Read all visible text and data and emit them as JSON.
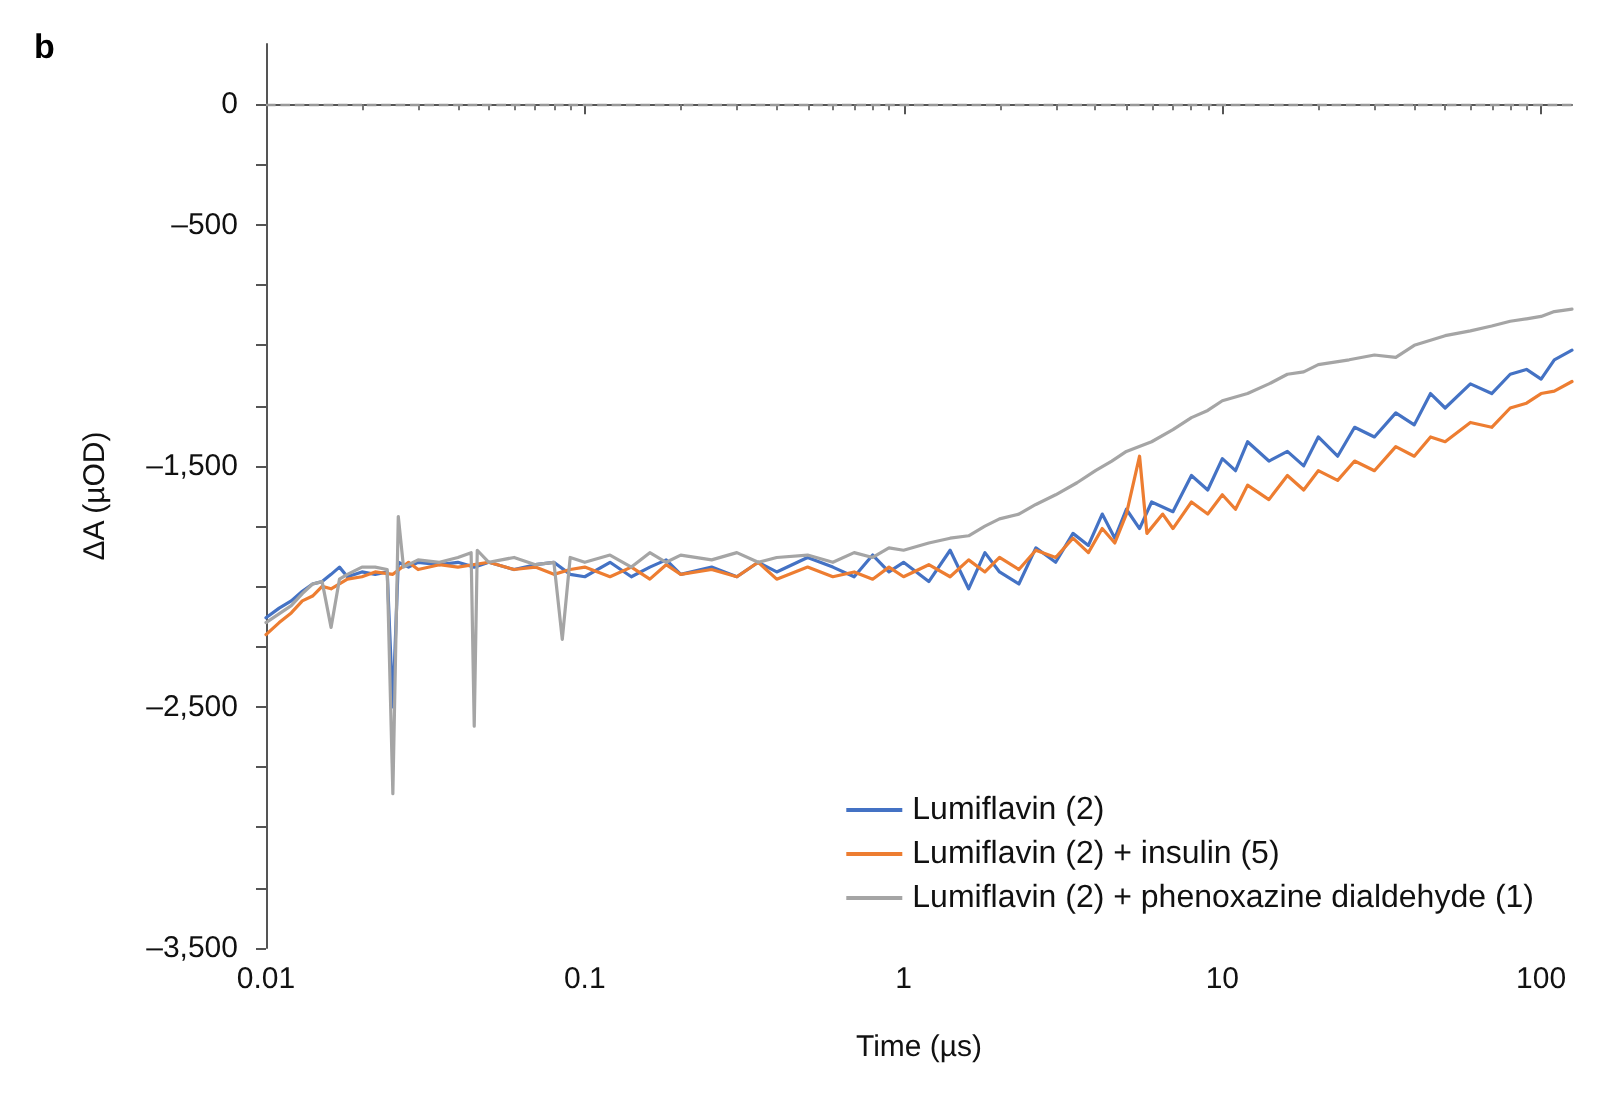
{
  "chart_data": {
    "type": "line",
    "title": "b",
    "xlabel": "Time (µs)",
    "ylabel": "ΔA (µOD)",
    "log": "x",
    "xlim": [
      0.01,
      125
    ],
    "xticks": [
      0.01,
      0.1,
      1,
      10,
      100
    ],
    "ylim": [
      -3500,
      250
    ],
    "yticks": [
      {
        "value": -3500,
        "label": "–3,500"
      },
      {
        "value": -3250,
        "label": null
      },
      {
        "value": -3000,
        "label": null
      },
      {
        "value": -2750,
        "label": null
      },
      {
        "value": -2500,
        "label": "–2,500"
      },
      {
        "value": -2250,
        "label": null
      },
      {
        "value": -2000,
        "label": null
      },
      {
        "value": -1750,
        "label": null
      },
      {
        "value": -1500,
        "label": "–1,500"
      },
      {
        "value": -1250,
        "label": null
      },
      {
        "value": -1000,
        "label": null
      },
      {
        "value": -750,
        "label": null
      },
      {
        "value": -500,
        "label": "–500"
      },
      {
        "value": -250,
        "label": null
      },
      {
        "value": 0,
        "label": "0"
      }
    ],
    "grid": false,
    "legend": "bottom right",
    "marker": "none",
    "line_style": "solid",
    "ref_lines": [
      {
        "axis": "y",
        "value": 0,
        "color": "#999999",
        "line_style": "dashed"
      }
    ],
    "series": [
      {
        "name": "Lumiflavin (2)",
        "color": "#4472c4",
        "x": [
          0.01,
          0.011,
          0.012,
          0.013,
          0.014,
          0.015,
          0.016,
          0.017,
          0.018,
          0.02,
          0.022,
          0.024,
          0.025,
          0.026,
          0.028,
          0.03,
          0.035,
          0.04,
          0.045,
          0.05,
          0.06,
          0.07,
          0.08,
          0.09,
          0.1,
          0.12,
          0.14,
          0.16,
          0.18,
          0.2,
          0.25,
          0.3,
          0.35,
          0.4,
          0.5,
          0.6,
          0.7,
          0.8,
          0.9,
          1,
          1.2,
          1.4,
          1.6,
          1.8,
          2,
          2.3,
          2.6,
          3,
          3.4,
          3.8,
          4.2,
          4.6,
          5,
          5.5,
          6,
          7,
          8,
          9,
          10,
          11,
          12,
          14,
          16,
          18,
          20,
          23,
          26,
          30,
          35,
          40,
          45,
          50,
          60,
          70,
          80,
          90,
          100,
          110,
          125
        ],
        "values": [
          -2130,
          -2090,
          -2060,
          -2020,
          -1990,
          -1980,
          -1950,
          -1920,
          -1960,
          -1940,
          -1950,
          -1940,
          -2500,
          -1900,
          -1920,
          -1900,
          -1910,
          -1900,
          -1920,
          -1900,
          -1930,
          -1910,
          -1900,
          -1950,
          -1960,
          -1900,
          -1960,
          -1920,
          -1890,
          -1950,
          -1920,
          -1960,
          -1900,
          -1940,
          -1880,
          -1920,
          -1960,
          -1870,
          -1940,
          -1900,
          -1980,
          -1850,
          -2010,
          -1860,
          -1940,
          -1990,
          -1840,
          -1900,
          -1780,
          -1830,
          -1700,
          -1800,
          -1680,
          -1760,
          -1650,
          -1690,
          -1540,
          -1600,
          -1470,
          -1520,
          -1400,
          -1480,
          -1440,
          -1500,
          -1380,
          -1460,
          -1340,
          -1380,
          -1280,
          -1330,
          -1200,
          -1260,
          -1160,
          -1200,
          -1120,
          -1100,
          -1140,
          -1060,
          -1020
        ]
      },
      {
        "name": "Lumiflavin (2) + insulin (5)",
        "color": "#ed7d31",
        "x": [
          0.01,
          0.011,
          0.012,
          0.013,
          0.014,
          0.015,
          0.016,
          0.018,
          0.02,
          0.022,
          0.025,
          0.028,
          0.03,
          0.035,
          0.04,
          0.05,
          0.06,
          0.07,
          0.08,
          0.09,
          0.1,
          0.12,
          0.14,
          0.16,
          0.18,
          0.2,
          0.25,
          0.3,
          0.35,
          0.4,
          0.5,
          0.6,
          0.7,
          0.8,
          0.9,
          1,
          1.2,
          1.4,
          1.6,
          1.8,
          2,
          2.3,
          2.6,
          3,
          3.4,
          3.8,
          4.2,
          4.6,
          5,
          5.5,
          5.8,
          6.5,
          7,
          8,
          9,
          10,
          11,
          12,
          14,
          16,
          18,
          20,
          23,
          26,
          30,
          35,
          40,
          45,
          50,
          60,
          70,
          80,
          90,
          100,
          110,
          125
        ],
        "values": [
          -2200,
          -2150,
          -2110,
          -2060,
          -2040,
          -2000,
          -2010,
          -1970,
          -1960,
          -1940,
          -1950,
          -1900,
          -1930,
          -1910,
          -1920,
          -1900,
          -1930,
          -1920,
          -1950,
          -1930,
          -1920,
          -1960,
          -1920,
          -1970,
          -1910,
          -1950,
          -1930,
          -1960,
          -1900,
          -1970,
          -1920,
          -1960,
          -1940,
          -1970,
          -1920,
          -1960,
          -1910,
          -1960,
          -1890,
          -1940,
          -1880,
          -1930,
          -1850,
          -1880,
          -1800,
          -1860,
          -1760,
          -1820,
          -1700,
          -1460,
          -1780,
          -1700,
          -1760,
          -1650,
          -1700,
          -1620,
          -1680,
          -1580,
          -1640,
          -1540,
          -1600,
          -1520,
          -1560,
          -1480,
          -1520,
          -1420,
          -1460,
          -1380,
          -1400,
          -1320,
          -1340,
          -1260,
          -1240,
          -1200,
          -1190,
          -1150
        ]
      },
      {
        "name": "Lumiflavin (2) + phenoxazine dialdehyde (1)",
        "color": "#a5a5a5",
        "x": [
          0.01,
          0.012,
          0.013,
          0.014,
          0.015,
          0.016,
          0.017,
          0.018,
          0.02,
          0.022,
          0.024,
          0.025,
          0.026,
          0.027,
          0.03,
          0.035,
          0.04,
          0.044,
          0.045,
          0.046,
          0.05,
          0.06,
          0.07,
          0.08,
          0.085,
          0.09,
          0.1,
          0.12,
          0.14,
          0.16,
          0.18,
          0.2,
          0.25,
          0.3,
          0.35,
          0.4,
          0.5,
          0.6,
          0.7,
          0.8,
          0.9,
          1,
          1.2,
          1.4,
          1.6,
          1.8,
          2,
          2.3,
          2.6,
          3,
          3.5,
          4,
          4.5,
          5,
          6,
          7,
          8,
          9,
          10,
          12,
          14,
          16,
          18,
          20,
          25,
          30,
          35,
          40,
          50,
          60,
          70,
          80,
          90,
          100,
          110,
          125
        ],
        "values": [
          -2150,
          -2080,
          -2030,
          -1990,
          -1980,
          -2170,
          -1970,
          -1950,
          -1920,
          -1920,
          -1930,
          -2860,
          -1710,
          -1920,
          -1890,
          -1900,
          -1880,
          -1860,
          -2580,
          -1850,
          -1900,
          -1880,
          -1910,
          -1900,
          -2220,
          -1880,
          -1900,
          -1870,
          -1920,
          -1860,
          -1900,
          -1870,
          -1890,
          -1860,
          -1900,
          -1880,
          -1870,
          -1900,
          -1860,
          -1880,
          -1840,
          -1850,
          -1820,
          -1800,
          -1790,
          -1750,
          -1720,
          -1700,
          -1660,
          -1620,
          -1570,
          -1520,
          -1480,
          -1440,
          -1400,
          -1350,
          -1300,
          -1270,
          -1230,
          -1200,
          -1160,
          -1120,
          -1110,
          -1080,
          -1060,
          -1040,
          -1050,
          -1000,
          -960,
          -940,
          -920,
          -900,
          -890,
          -880,
          -860,
          -850
        ]
      }
    ]
  }
}
